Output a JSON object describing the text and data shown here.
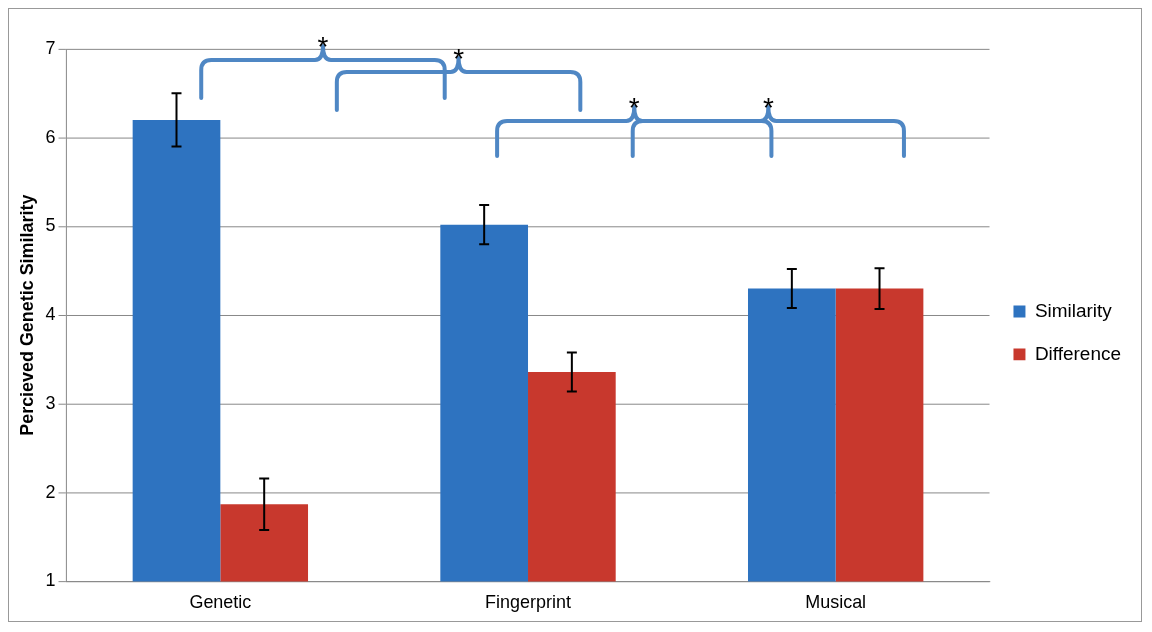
{
  "chart_data": {
    "type": "bar",
    "ylabel": "Percieved Genetic Similarity",
    "categories": [
      "Genetic",
      "Fingerprint",
      "Musical"
    ],
    "series": [
      {
        "name": "Similarity",
        "color": "#2e73c0",
        "values": [
          6.2,
          5.02,
          4.3
        ],
        "errors": [
          0.3,
          0.22,
          0.22
        ]
      },
      {
        "name": "Difference",
        "color": "#c8382d",
        "values": [
          1.87,
          3.36,
          4.3
        ],
        "errors": [
          0.29,
          0.22,
          0.23
        ]
      }
    ],
    "ylim": [
      1,
      7
    ],
    "yticks": [
      1,
      2,
      3,
      4,
      5,
      6,
      7
    ],
    "grid": "y",
    "legend": "right",
    "annotations": [
      "*",
      "*",
      "*",
      "*"
    ]
  }
}
